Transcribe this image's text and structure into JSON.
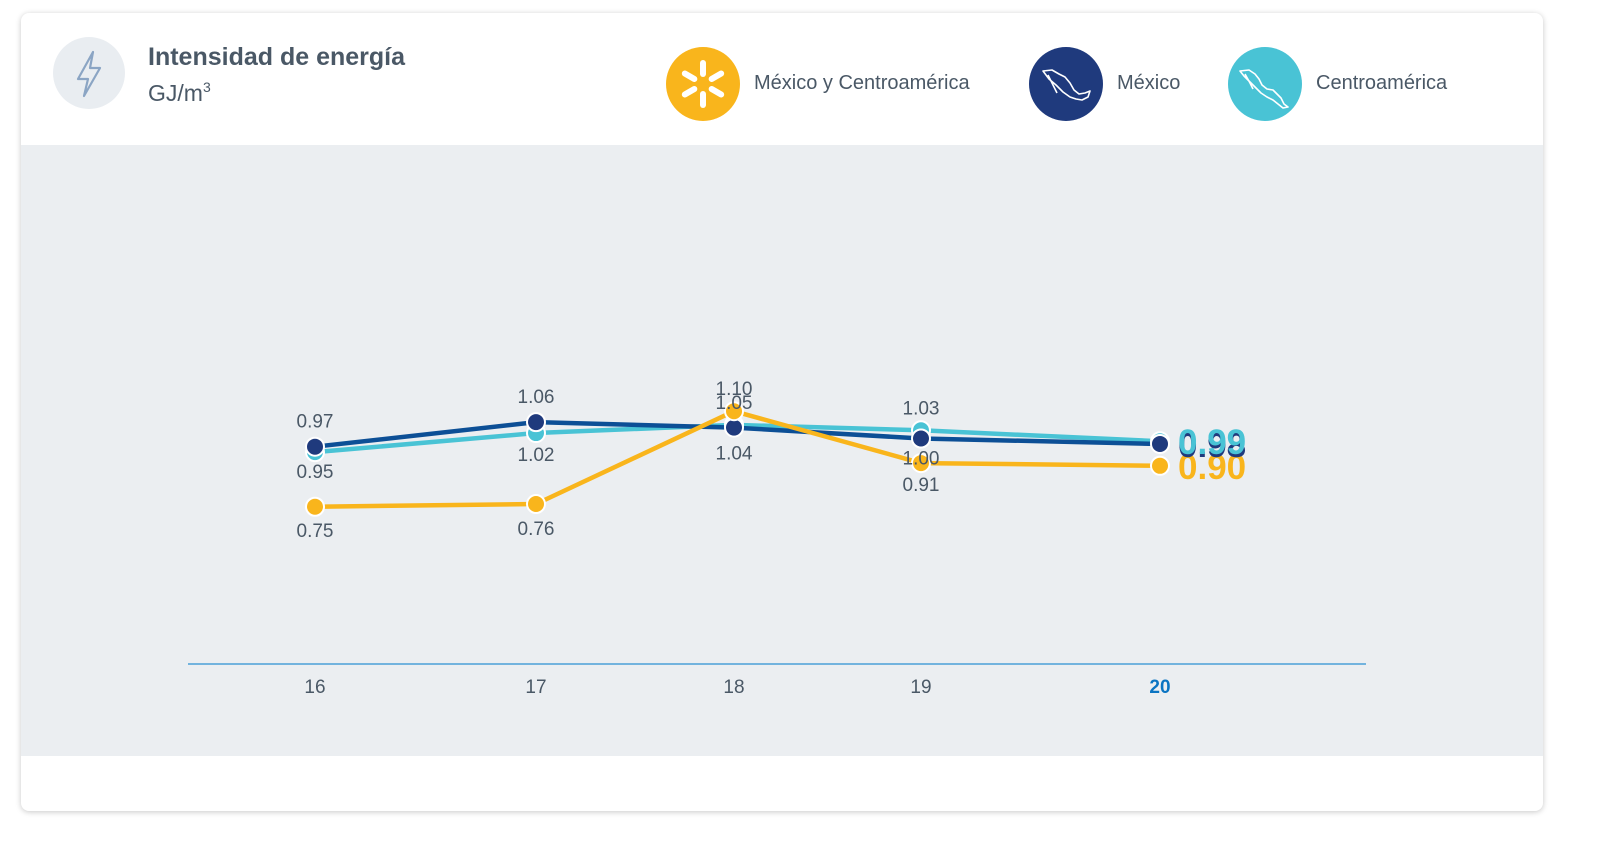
{
  "header": {
    "title": "Intensidad de energía",
    "unit_base": "GJ/m",
    "unit_exponent": "3",
    "icon": "lightning-bolt-icon"
  },
  "legend": [
    {
      "label": "México y Centroamérica",
      "color": "#f9b51c",
      "icon": "walmart-spark-icon"
    },
    {
      "label": "México",
      "color": "#1f3a7d",
      "icon": "mexico-map-icon"
    },
    {
      "label": "Centroamérica",
      "color": "#49c3d5",
      "icon": "central-america-map-icon"
    }
  ],
  "colors": {
    "axis": "#4a9fd8",
    "highlight_tick": "#0a74c2",
    "label": "#4a5866",
    "plot_background": "#ebeef1",
    "mexico_line": "#0c4f96"
  },
  "chart_data": {
    "type": "line",
    "title": "Intensidad de energía",
    "ylabel": "GJ/m³",
    "categories": [
      "16",
      "17",
      "18",
      "19",
      "20"
    ],
    "highlight_category": "20",
    "series": [
      {
        "name": "México y Centroamérica",
        "values": [
          0.75,
          0.76,
          1.1,
          0.91,
          0.9
        ],
        "labels": [
          "0.75",
          "0.76",
          "1.10",
          "0.91",
          "0.90"
        ],
        "color": "#f9b51c"
      },
      {
        "name": "México",
        "values": [
          0.97,
          1.06,
          1.04,
          1.0,
          0.98
        ],
        "labels": [
          "0.97",
          "1.06",
          "1.04",
          "1.00",
          "0.98"
        ],
        "color": "#1f3a7d"
      },
      {
        "name": "Centroamérica",
        "values": [
          0.95,
          1.02,
          1.05,
          1.03,
          0.99
        ],
        "labels": [
          "0.95",
          "1.02",
          "1.05",
          "1.03",
          "0.99"
        ],
        "color": "#49c3d5"
      }
    ],
    "grid": false,
    "legend_position": "top-right"
  }
}
